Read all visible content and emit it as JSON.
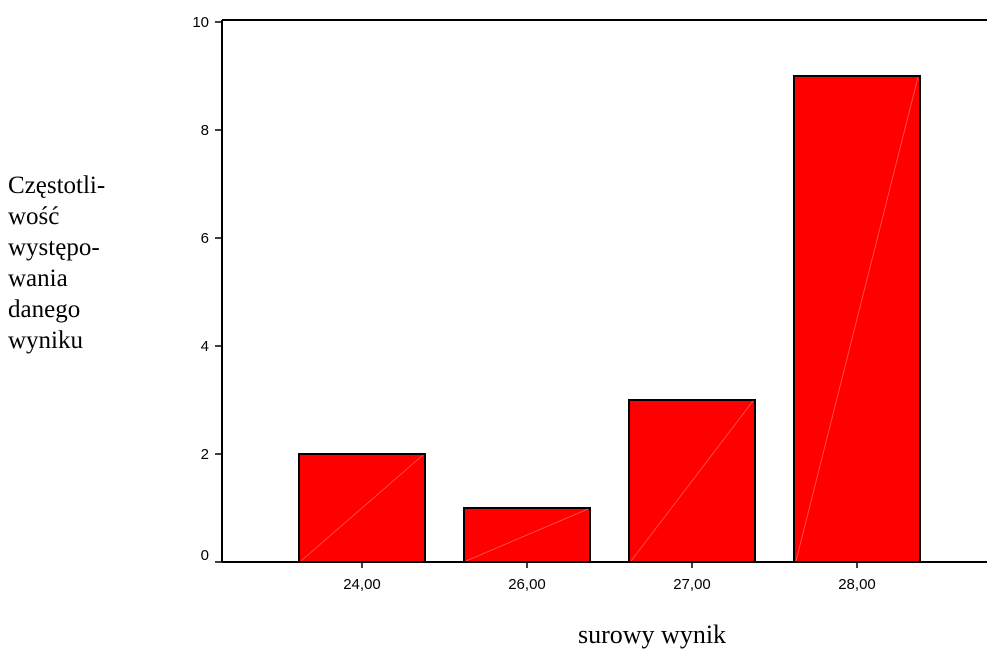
{
  "chart_data": {
    "type": "bar",
    "categories": [
      "24,00",
      "26,00",
      "27,00",
      "28,00"
    ],
    "values": [
      2,
      1,
      3,
      9
    ],
    "ylim": [
      0,
      10
    ],
    "yticks": [
      "0",
      "2",
      "4",
      "6",
      "8",
      "10"
    ],
    "ylabel_lines": [
      "Częstotli-",
      "wość",
      "występo-",
      "wania",
      "danego",
      "wyniku"
    ],
    "xlabel": "surowy wynik",
    "grid": false,
    "bar_color": "#ff0000",
    "edge_color": "#000000"
  }
}
